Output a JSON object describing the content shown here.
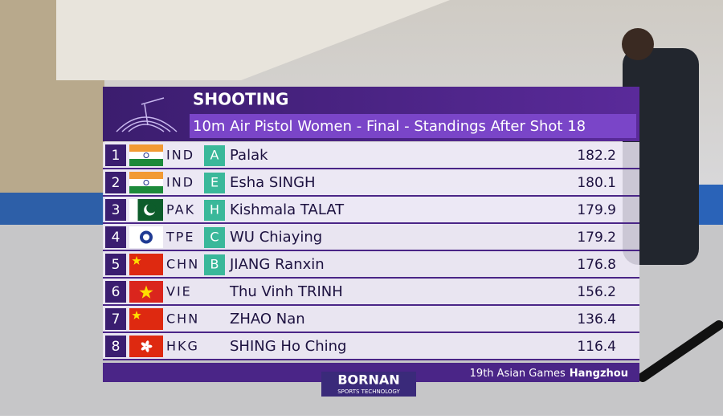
{
  "header": {
    "title": "SHOOTING",
    "subtitle": "10m Air Pistol Women - Final - Standings After  Shot 18"
  },
  "table": {
    "rows": [
      {
        "rank": 1,
        "code": "IND",
        "letter": "A",
        "name": "Palak",
        "score": 182.2
      },
      {
        "rank": 2,
        "code": "IND",
        "letter": "E",
        "name": "Esha SINGH",
        "score": 180.1
      },
      {
        "rank": 3,
        "code": "PAK",
        "letter": "H",
        "name": "Kishmala TALAT",
        "score": 179.9
      },
      {
        "rank": 4,
        "code": "TPE",
        "letter": "C",
        "name": "WU Chiaying",
        "score": 179.2
      },
      {
        "rank": 5,
        "code": "CHN",
        "letter": "B",
        "name": "JIANG Ranxin",
        "score": 176.8
      },
      {
        "rank": 6,
        "code": "VIE",
        "name": "Thu Vinh TRINH",
        "score": 156.2
      },
      {
        "rank": 7,
        "code": "CHN",
        "name": "ZHAO Nan",
        "score": 136.4
      },
      {
        "rank": 8,
        "code": "HKG",
        "name": "SHING Ho Ching",
        "score": 116.4
      }
    ]
  },
  "footer": {
    "event": "19th Asian Games",
    "city": "Hangzhou"
  },
  "logo": {
    "brand": "BORNAN",
    "tagline": "SPORTS TECHNOLOGY"
  }
}
